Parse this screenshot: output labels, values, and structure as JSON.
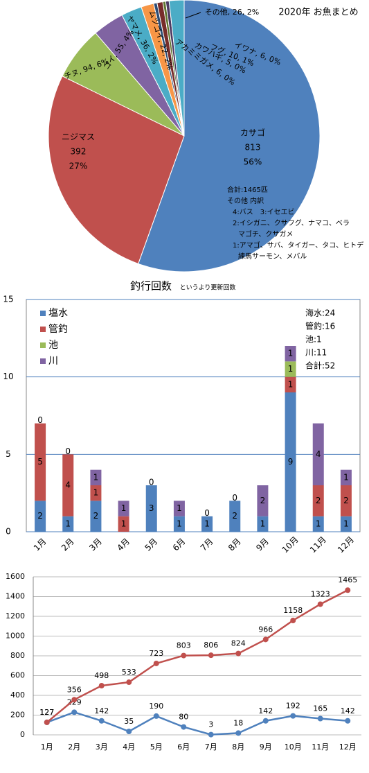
{
  "chart_data": [
    {
      "type": "pie",
      "title": "2020年 お魚まとめ",
      "values": [
        813,
        392,
        94,
        55,
        36,
        22,
        6,
        10,
        5,
        6,
        26
      ],
      "value_labels": [
        [
          "カサゴ",
          "813",
          "56%"
        ],
        [
          "ニジマス",
          "392",
          "27%"
        ],
        [
          "チヌ, 94, 6%"
        ],
        [
          "コイ, 55, 4%"
        ],
        [
          "ヤマメ, 36, 2%"
        ],
        [
          "ムツゴイ, 22, 2%"
        ],
        [
          "イワナ, 6, 0%"
        ],
        [
          "フグ, 10, 1%"
        ],
        [
          "カワハギ, 5, 0%"
        ],
        [
          "アカミミガメ, 6, 0%"
        ],
        [
          "その他, 26, 2%"
        ]
      ],
      "colors": [
        "#4f81bd",
        "#c0504d",
        "#9bbb59",
        "#8064a2",
        "#4bacc6",
        "#f79646",
        "#2c4d75",
        "#772c2a",
        "#5f7530",
        "#4d3b62",
        "#4bacc6"
      ],
      "annotation": [
        "合計:1465匹",
        "その他 内訳",
        "4:バス　3:イセエビ",
        "2:イシガニ、クサフグ、ナマコ、ベラ",
        "マゴチ、クサガメ",
        "1:アマゴ、サバ、タイガー、タコ、ヒトデ",
        "練馬サーモン、メバル"
      ]
    },
    {
      "type": "bar",
      "stacked": true,
      "title": "釣行回数",
      "subtitle": "というより更新回数",
      "categories": [
        "1月",
        "2月",
        "3月",
        "4月",
        "5月",
        "6月",
        "7月",
        "8月",
        "9月",
        "10月",
        "11月",
        "12月"
      ],
      "series": [
        {
          "name": "塩水",
          "color": "#4f81bd",
          "values": [
            2,
            1,
            2,
            0,
            3,
            1,
            1,
            2,
            1,
            9,
            1,
            1
          ]
        },
        {
          "name": "管釣",
          "color": "#c0504d",
          "values": [
            5,
            4,
            1,
            1,
            0,
            0,
            0,
            0,
            0,
            1,
            2,
            2
          ]
        },
        {
          "name": "池",
          "color": "#9bbb59",
          "values": [
            0,
            0,
            0,
            0,
            null,
            null,
            null,
            null,
            null,
            1,
            0,
            null
          ]
        },
        {
          "name": "川",
          "color": "#8064a2",
          "values": [
            null,
            null,
            1,
            1,
            null,
            1,
            null,
            null,
            2,
            1,
            4,
            1
          ]
        }
      ],
      "ylim": [
        0,
        15
      ],
      "yticks": [
        0,
        5,
        10,
        15
      ],
      "grid": true,
      "legend": "upper left",
      "annotation": [
        "海水:24",
        "管釣:16",
        "池:1",
        "川:11",
        "合計:52"
      ]
    },
    {
      "type": "line",
      "categories": [
        "1月",
        "2月",
        "3月",
        "4月",
        "5月",
        "6月",
        "7月",
        "8月",
        "9月",
        "10月",
        "11月",
        "12月"
      ],
      "series": [
        {
          "color": "#4f81bd",
          "values": [
            127,
            229,
            142,
            35,
            190,
            80,
            3,
            18,
            142,
            192,
            165,
            142
          ]
        },
        {
          "color": "#c0504d",
          "values": [
            127,
            356,
            498,
            533,
            723,
            803,
            806,
            824,
            966,
            1158,
            1323,
            1465
          ]
        }
      ],
      "ylim": [
        0,
        1600
      ],
      "yticks": [
        0,
        200,
        400,
        600,
        800,
        1000,
        1200,
        1400,
        1600
      ],
      "grid": true
    }
  ]
}
